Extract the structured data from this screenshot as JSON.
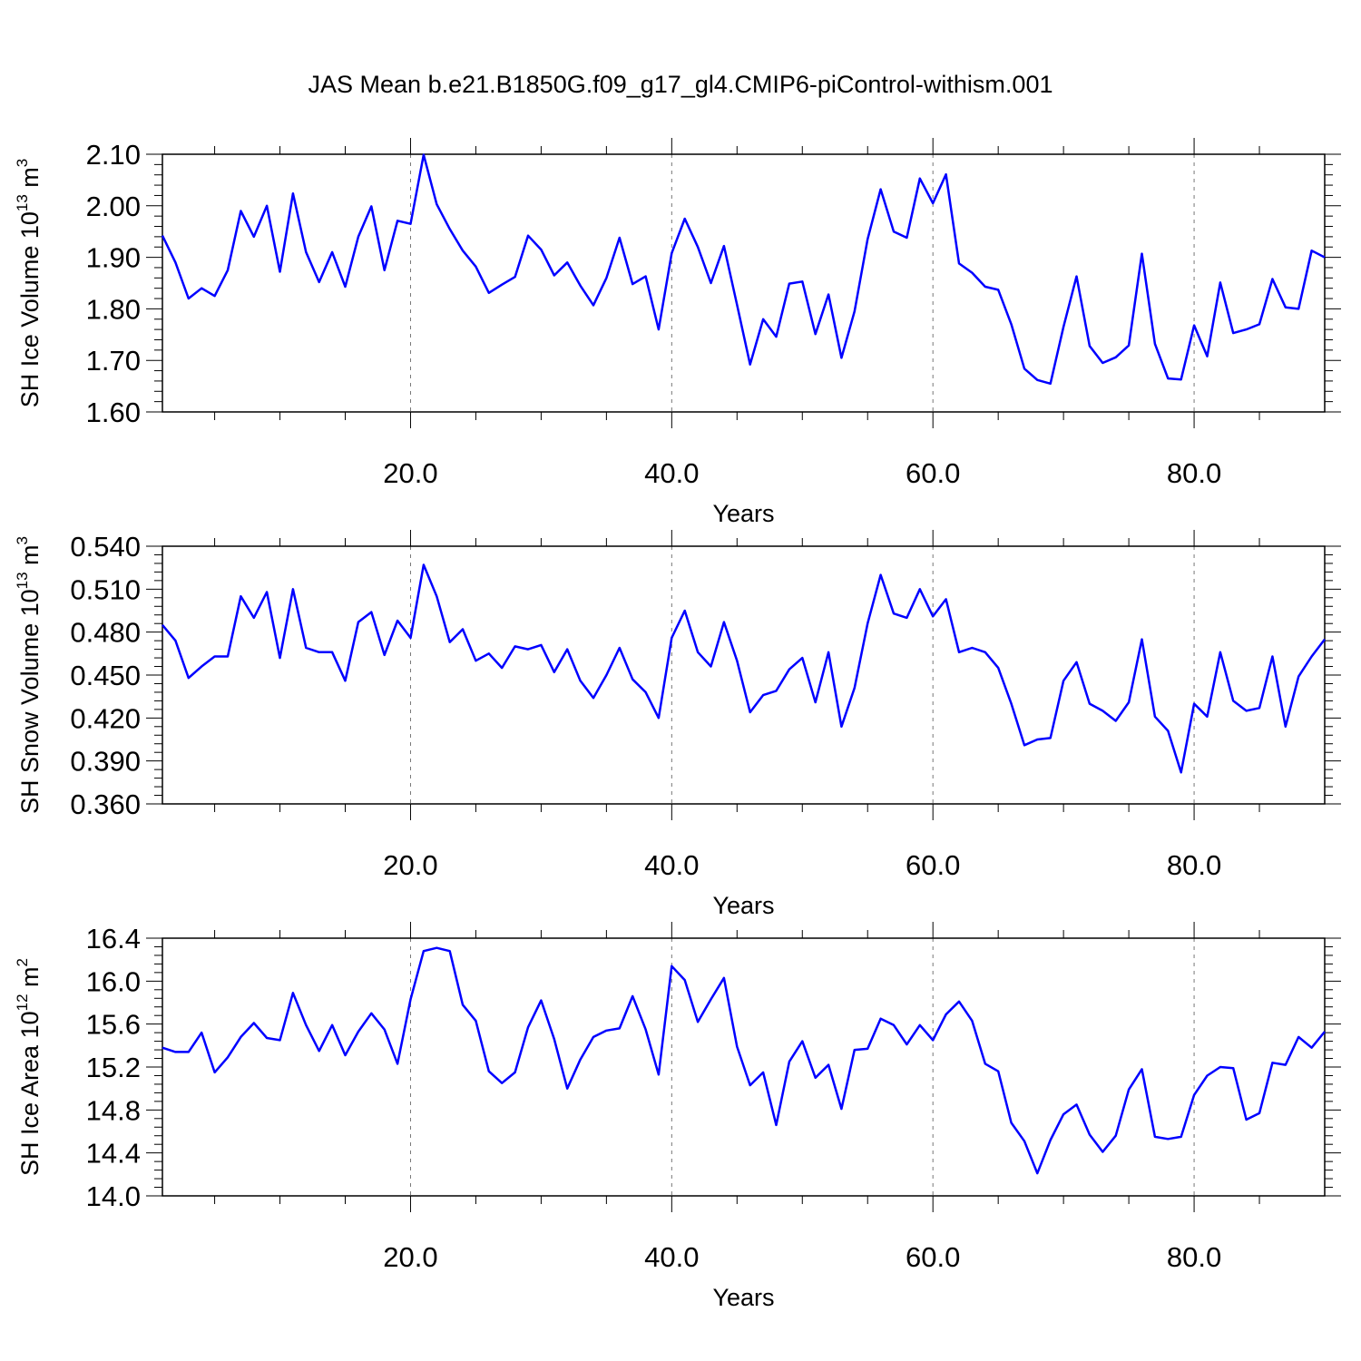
{
  "title": "JAS Mean b.e21.B1850G.f09_g17_gl4.CMIP6-piControl-withism.001",
  "colors": {
    "line": "#0000ff",
    "axis": "#000000",
    "grid": "#777777"
  },
  "chart_data": [
    {
      "type": "line",
      "xlabel": "Years",
      "ylabel": {
        "text": "SH Ice Volume 10",
        "sup": "13",
        "unit": " m",
        "unit_sup": "3"
      },
      "xlim": [
        1,
        90
      ],
      "ylim": [
        1.6,
        2.1
      ],
      "xticks": [
        20,
        40,
        60,
        80
      ],
      "xtick_labels": [
        "20.0",
        "40.0",
        "60.0",
        "80.0"
      ],
      "yticks": [
        1.6,
        1.7,
        1.8,
        1.9,
        2.0,
        2.1
      ],
      "ytick_labels": [
        "1.60",
        "1.70",
        "1.80",
        "1.90",
        "2.00",
        "2.10"
      ],
      "grid": "vertical dashed at major x ticks",
      "series": [
        {
          "x_start": 1,
          "values": [
            1.942,
            1.89,
            1.82,
            1.84,
            1.825,
            1.875,
            1.99,
            1.94,
            2.0,
            1.872,
            2.024,
            1.91,
            1.852,
            1.91,
            1.843,
            1.94,
            1.999,
            1.875,
            1.971,
            1.965,
            2.099,
            2.003,
            1.955,
            1.913,
            1.882,
            1.831,
            1.847,
            1.862,
            1.942,
            1.915,
            1.865,
            1.89,
            1.845,
            1.807,
            1.86,
            1.938,
            1.848,
            1.863,
            1.76,
            1.908,
            1.975,
            1.92,
            1.85,
            1.922,
            1.808,
            1.692,
            1.78,
            1.746,
            1.849,
            1.853,
            1.751,
            1.828,
            1.705,
            1.795,
            1.935,
            2.032,
            1.95,
            1.938,
            2.053,
            2.005,
            2.061,
            1.888,
            1.87,
            1.843,
            1.837,
            1.77,
            1.684,
            1.662,
            1.655,
            1.765,
            1.863,
            1.728,
            1.695,
            1.706,
            1.729,
            1.907,
            1.732,
            1.665,
            1.663,
            1.768,
            1.708,
            1.851,
            1.753,
            1.76,
            1.77,
            1.858,
            1.803,
            1.8,
            1.913,
            1.9
          ]
        }
      ]
    },
    {
      "type": "line",
      "xlabel": "Years",
      "ylabel": {
        "text": "SH Snow Volume 10",
        "sup": "13",
        "unit": " m",
        "unit_sup": "3"
      },
      "xlim": [
        1,
        90
      ],
      "ylim": [
        0.36,
        0.54
      ],
      "xticks": [
        20,
        40,
        60,
        80
      ],
      "xtick_labels": [
        "20.0",
        "40.0",
        "60.0",
        "80.0"
      ],
      "yticks": [
        0.36,
        0.39,
        0.42,
        0.45,
        0.48,
        0.51,
        0.54
      ],
      "ytick_labels": [
        "0.360",
        "0.390",
        "0.420",
        "0.450",
        "0.480",
        "0.510",
        "0.540"
      ],
      "grid": "vertical dashed at major x ticks",
      "series": [
        {
          "x_start": 1,
          "values": [
            0.485,
            0.474,
            0.448,
            0.456,
            0.463,
            0.463,
            0.505,
            0.49,
            0.508,
            0.462,
            0.51,
            0.469,
            0.466,
            0.466,
            0.446,
            0.487,
            0.494,
            0.464,
            0.488,
            0.476,
            0.527,
            0.505,
            0.473,
            0.482,
            0.46,
            0.465,
            0.455,
            0.47,
            0.468,
            0.471,
            0.452,
            0.468,
            0.446,
            0.434,
            0.45,
            0.469,
            0.447,
            0.438,
            0.42,
            0.476,
            0.495,
            0.466,
            0.456,
            0.487,
            0.46,
            0.424,
            0.436,
            0.439,
            0.454,
            0.462,
            0.431,
            0.466,
            0.414,
            0.441,
            0.486,
            0.52,
            0.493,
            0.49,
            0.51,
            0.491,
            0.503,
            0.466,
            0.469,
            0.466,
            0.455,
            0.43,
            0.401,
            0.405,
            0.406,
            0.446,
            0.459,
            0.43,
            0.425,
            0.418,
            0.431,
            0.475,
            0.421,
            0.411,
            0.382,
            0.43,
            0.421,
            0.466,
            0.432,
            0.425,
            0.427,
            0.463,
            0.414,
            0.449,
            0.463,
            0.475
          ]
        }
      ]
    },
    {
      "type": "line",
      "xlabel": "Years",
      "ylabel": {
        "text": "SH Ice Area 10",
        "sup": "12",
        "unit": " m",
        "unit_sup": "2"
      },
      "xlim": [
        1,
        90
      ],
      "ylim": [
        14.0,
        16.4
      ],
      "xticks": [
        20,
        40,
        60,
        80
      ],
      "xtick_labels": [
        "20.0",
        "40.0",
        "60.0",
        "80.0"
      ],
      "yticks": [
        14.0,
        14.4,
        14.8,
        15.2,
        15.6,
        16.0,
        16.4
      ],
      "ytick_labels": [
        "14.0",
        "14.4",
        "14.8",
        "15.2",
        "15.6",
        "16.0",
        "16.4"
      ],
      "grid": "vertical dashed at major x ticks",
      "series": [
        {
          "x_start": 1,
          "values": [
            15.38,
            15.34,
            15.34,
            15.52,
            15.15,
            15.29,
            15.48,
            15.61,
            15.47,
            15.45,
            15.89,
            15.59,
            15.35,
            15.59,
            15.31,
            15.53,
            15.7,
            15.55,
            15.23,
            15.83,
            16.28,
            16.31,
            16.28,
            15.78,
            15.63,
            15.16,
            15.05,
            15.15,
            15.57,
            15.82,
            15.46,
            15.0,
            15.27,
            15.48,
            15.54,
            15.56,
            15.86,
            15.55,
            15.13,
            16.14,
            16.01,
            15.62,
            15.83,
            16.03,
            15.39,
            15.03,
            15.15,
            14.66,
            15.25,
            15.44,
            15.1,
            15.22,
            14.81,
            15.36,
            15.37,
            15.65,
            15.59,
            15.41,
            15.59,
            15.45,
            15.69,
            15.81,
            15.63,
            15.23,
            15.16,
            14.68,
            14.51,
            14.21,
            14.52,
            14.76,
            14.85,
            14.57,
            14.41,
            14.56,
            14.99,
            15.18,
            14.55,
            14.53,
            14.55,
            14.94,
            15.12,
            15.2,
            15.19,
            14.71,
            14.77,
            15.24,
            15.22,
            15.48,
            15.38,
            15.53
          ]
        }
      ]
    }
  ]
}
